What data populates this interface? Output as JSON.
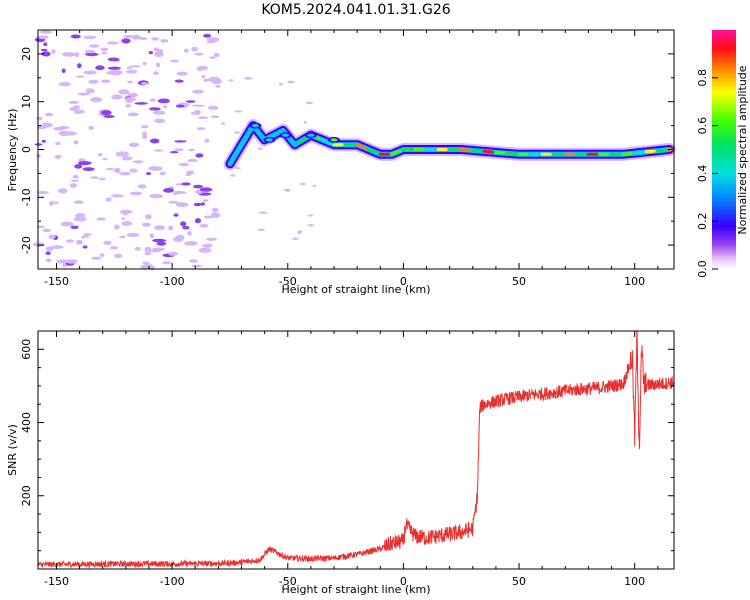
{
  "title": "KOM5.2024.041.01.31.G26",
  "chart_data": [
    {
      "type": "heatmap",
      "xlabel": "Height of straight line (km)",
      "ylabel": "Frequency (Hz)",
      "xlim": [
        -158,
        117
      ],
      "ylim": [
        -25,
        25
      ],
      "xticks": [
        -150,
        -100,
        -50,
        0,
        50,
        100
      ],
      "yticks": [
        -20,
        -10,
        0,
        10,
        20
      ],
      "colorbar": {
        "label": "Normalized spectral amplitude",
        "range": [
          0,
          1
        ],
        "ticks": [
          "0.0",
          "0.2",
          "0.4",
          "0.6",
          "0.8"
        ],
        "colormap": "rainbow (white/violet low, blue, cyan, green, yellow, red, magenta high)"
      },
      "signal_track": [
        {
          "x": -75,
          "freq": -3
        },
        {
          "x": -70,
          "freq": 1
        },
        {
          "x": -65,
          "freq": 5
        },
        {
          "x": -60,
          "freq": 2
        },
        {
          "x": -52,
          "freq": 4
        },
        {
          "x": -47,
          "freq": 1
        },
        {
          "x": -40,
          "freq": 3
        },
        {
          "x": -30,
          "freq": 1
        },
        {
          "x": -20,
          "freq": 1
        },
        {
          "x": -10,
          "freq": -1
        },
        {
          "x": -5,
          "freq": -1
        },
        {
          "x": 0,
          "freq": 0
        },
        {
          "x": 25,
          "freq": 0
        },
        {
          "x": 50,
          "freq": -1
        },
        {
          "x": 75,
          "freq": -1
        },
        {
          "x": 95,
          "freq": -1
        },
        {
          "x": 115,
          "freq": 0
        }
      ]
    },
    {
      "type": "line",
      "xlabel": "Height of straight line (km)",
      "ylabel": "SNR (v/v)",
      "xlim": [
        -158,
        117
      ],
      "ylim": [
        0,
        650
      ],
      "xticks": [
        -150,
        -100,
        -50,
        0,
        50,
        100
      ],
      "yticks": [
        200,
        400,
        600
      ],
      "color": "#e8302e",
      "series": [
        {
          "x": [
            -158,
            -140,
            -120,
            -100,
            -80,
            -70,
            -62,
            -58,
            -50,
            -40,
            -30,
            -20,
            -10,
            -5,
            0,
            1,
            5,
            10,
            15,
            20,
            25,
            30,
            32,
            33,
            35,
            45,
            55,
            65,
            75,
            85,
            95,
            99,
            100,
            101,
            102,
            103,
            104,
            110,
            117
          ],
          "values": [
            12,
            13,
            14,
            14,
            15,
            18,
            25,
            55,
            30,
            28,
            30,
            40,
            55,
            70,
            75,
            120,
            90,
            85,
            90,
            95,
            100,
            110,
            200,
            440,
            450,
            465,
            475,
            482,
            490,
            495,
            505,
            580,
            360,
            640,
            330,
            600,
            500,
            505,
            510
          ]
        }
      ]
    }
  ]
}
